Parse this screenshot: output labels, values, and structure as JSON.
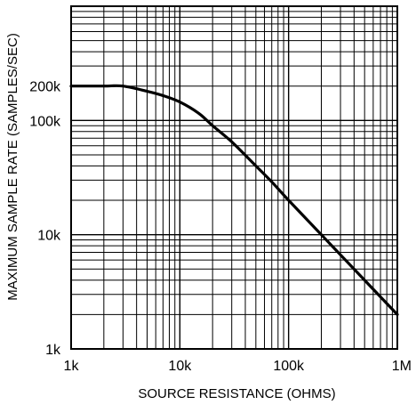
{
  "chart_data": {
    "type": "line",
    "title": "",
    "xlabel": "SOURCE RESISTANCE (OHMS)",
    "ylabel": "MAXIMUM SAMPLE RATE (SAMPLES/SEC)",
    "x_scale": "log",
    "y_scale": "log",
    "xlim": [
      1000,
      1000000
    ],
    "ylim": [
      1000,
      1000000
    ],
    "grid": true,
    "legend": "none",
    "x_ticks": [
      {
        "value": 1000,
        "label": "1k"
      },
      {
        "value": 10000,
        "label": "10k"
      },
      {
        "value": 100000,
        "label": "100k"
      },
      {
        "value": 1000000,
        "label": "1M"
      }
    ],
    "y_ticks": [
      {
        "value": 1000,
        "label": "1k"
      },
      {
        "value": 10000,
        "label": "10k"
      },
      {
        "value": 100000,
        "label": "100k"
      },
      {
        "value": 200000,
        "label": "200k"
      }
    ],
    "series": [
      {
        "color": "#000000",
        "x": [
          1000,
          2000,
          3000,
          5000,
          7000,
          10000,
          15000,
          20000,
          30000,
          50000,
          70000,
          100000,
          200000,
          500000,
          1000000
        ],
        "y": [
          200000,
          200000,
          200000,
          180000,
          165000,
          145000,
          115000,
          90000,
          65000,
          40000,
          29000,
          20000,
          10000,
          4000,
          2000
        ]
      }
    ]
  }
}
